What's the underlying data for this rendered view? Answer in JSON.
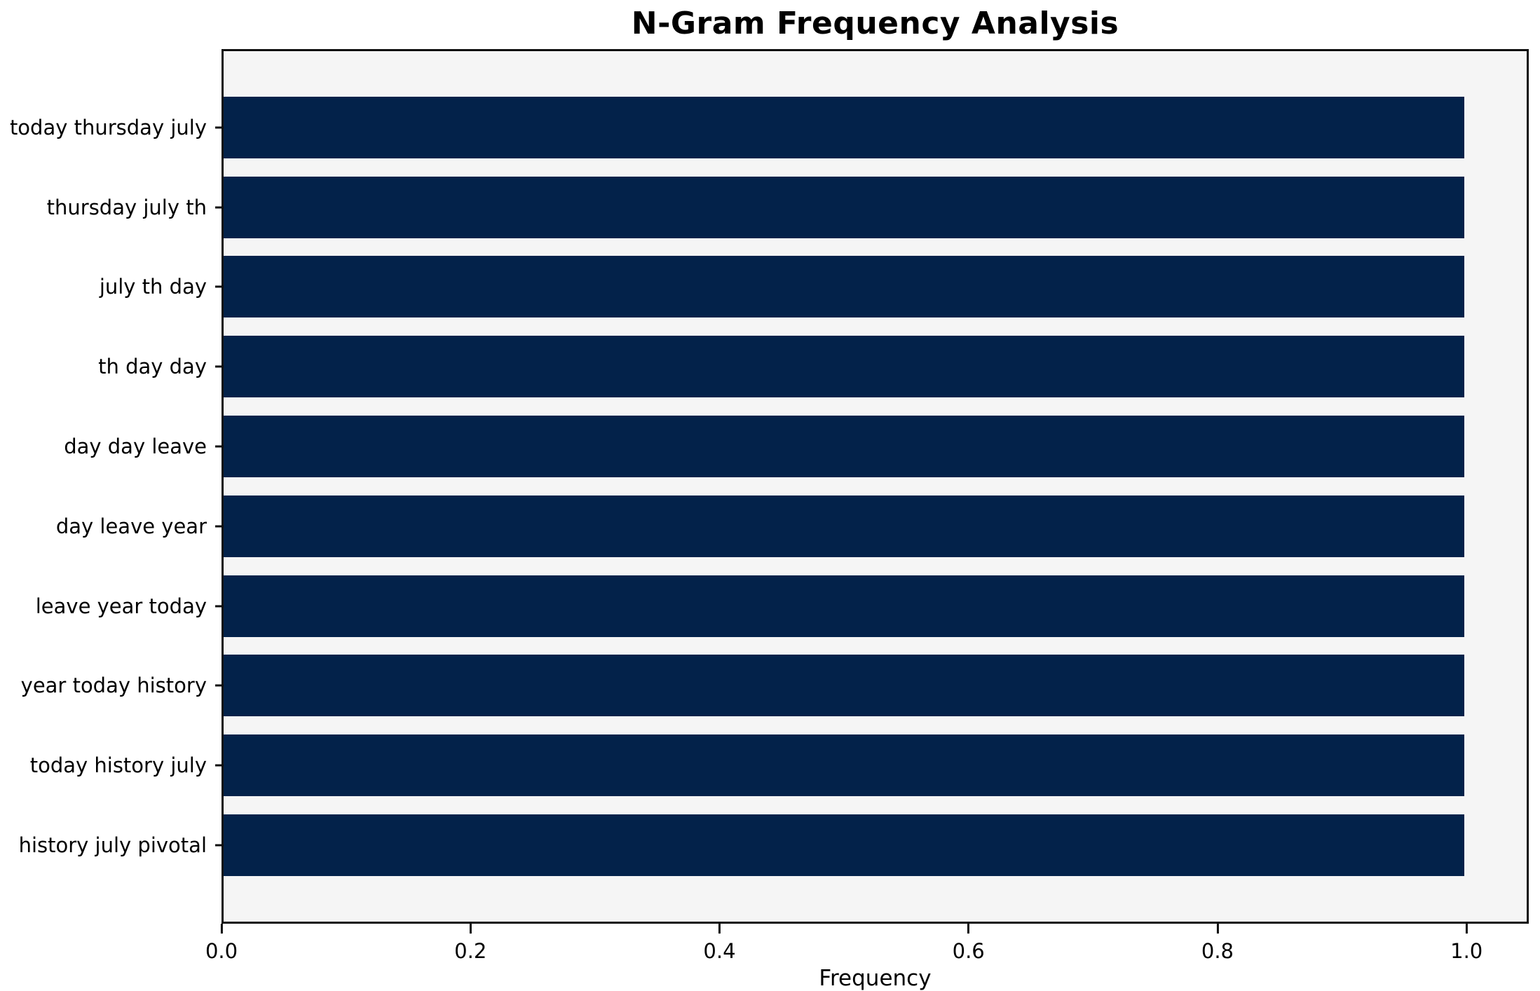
{
  "chart_data": {
    "type": "bar",
    "orientation": "horizontal",
    "title": "N-Gram Frequency Analysis",
    "xlabel": "Frequency",
    "ylabel": "",
    "categories": [
      "today thursday july",
      "thursday july th",
      "july th day",
      "th day day",
      "day day leave",
      "day leave year",
      "leave year today",
      "year today history",
      "today history july",
      "history july pivotal"
    ],
    "values": [
      1.0,
      1.0,
      1.0,
      1.0,
      1.0,
      1.0,
      1.0,
      1.0,
      1.0,
      1.0
    ],
    "x_ticks": [
      "0.0",
      "0.2",
      "0.4",
      "0.6",
      "0.8",
      "1.0"
    ],
    "xlim": [
      0,
      1.05
    ],
    "grid": false,
    "legend": "none",
    "bar_color": "#03224a",
    "plot_bg": "#f5f5f5",
    "fig_bg": "#ffffff",
    "spine_color": "#0f0f0f"
  }
}
